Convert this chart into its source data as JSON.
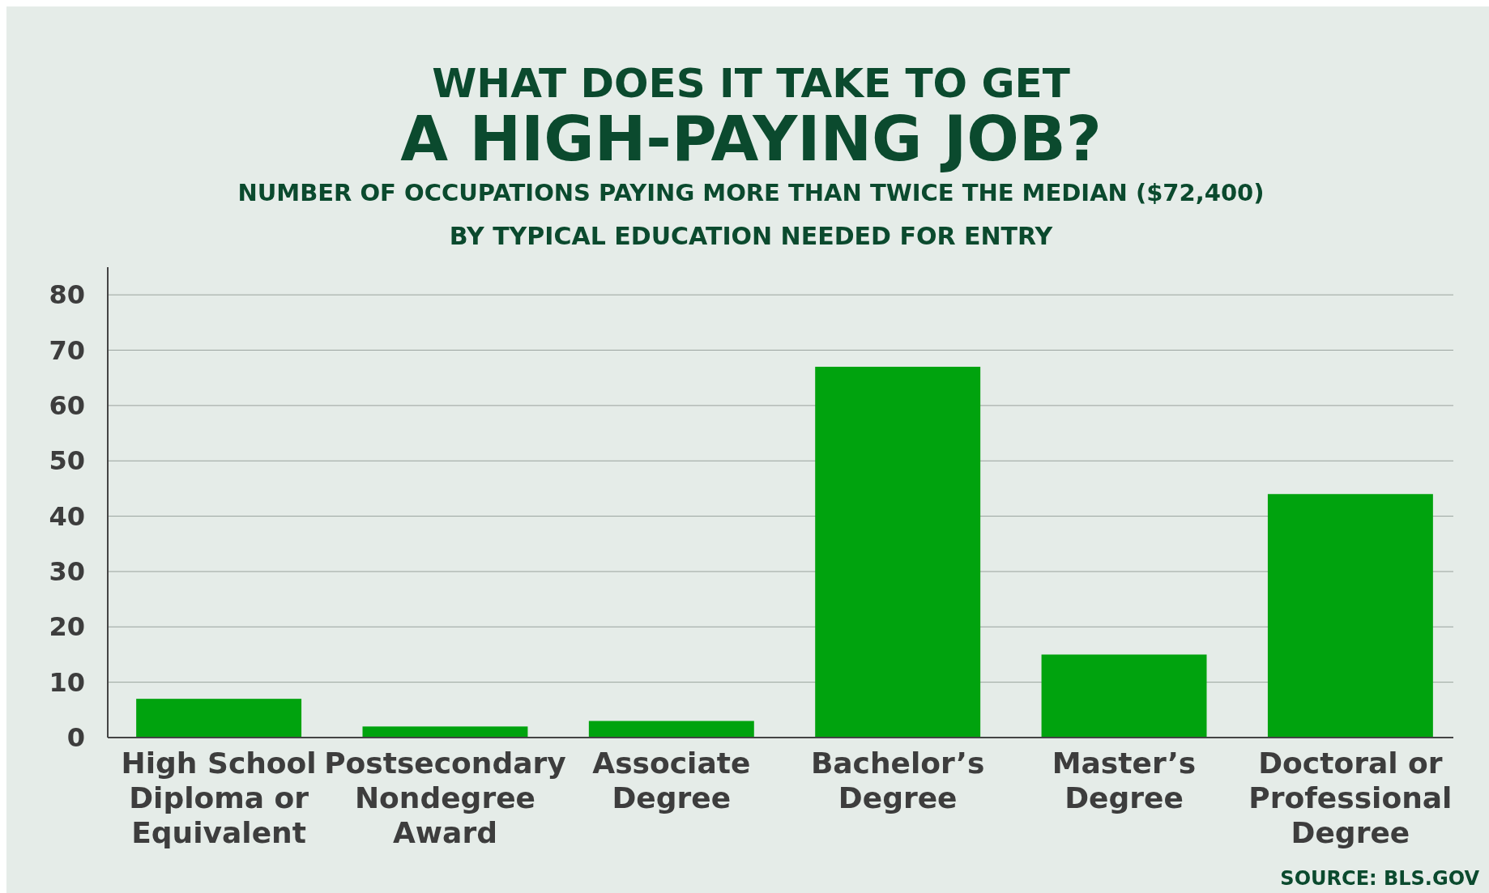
{
  "chart_data": {
    "type": "bar",
    "title": "WHAT DOES IT TAKE TO GET\nA HIGH-PAYING JOB?",
    "subtitle": "NUMBER OF OCCUPATIONS PAYING MORE THAN TWICE THE MEDIAN ($72,400)\nBY TYPICAL EDUCATION NEEDED FOR ENTRY",
    "categories": [
      "High School Diploma or Equivalent",
      "Postsecondary Nondegree Award",
      "Associate Degree",
      "Bachelor’s Degree",
      "Master’s Degree",
      "Doctoral or Professional Degree"
    ],
    "values": [
      7,
      2,
      3,
      67,
      15,
      44
    ],
    "color": "#00a30e",
    "ylim": [
      0,
      85
    ],
    "yticks": [
      0,
      10,
      20,
      30,
      40,
      50,
      60,
      70,
      80
    ],
    "grid": "y",
    "annotations": [
      "SOURCE: BLS.GOV"
    ]
  }
}
